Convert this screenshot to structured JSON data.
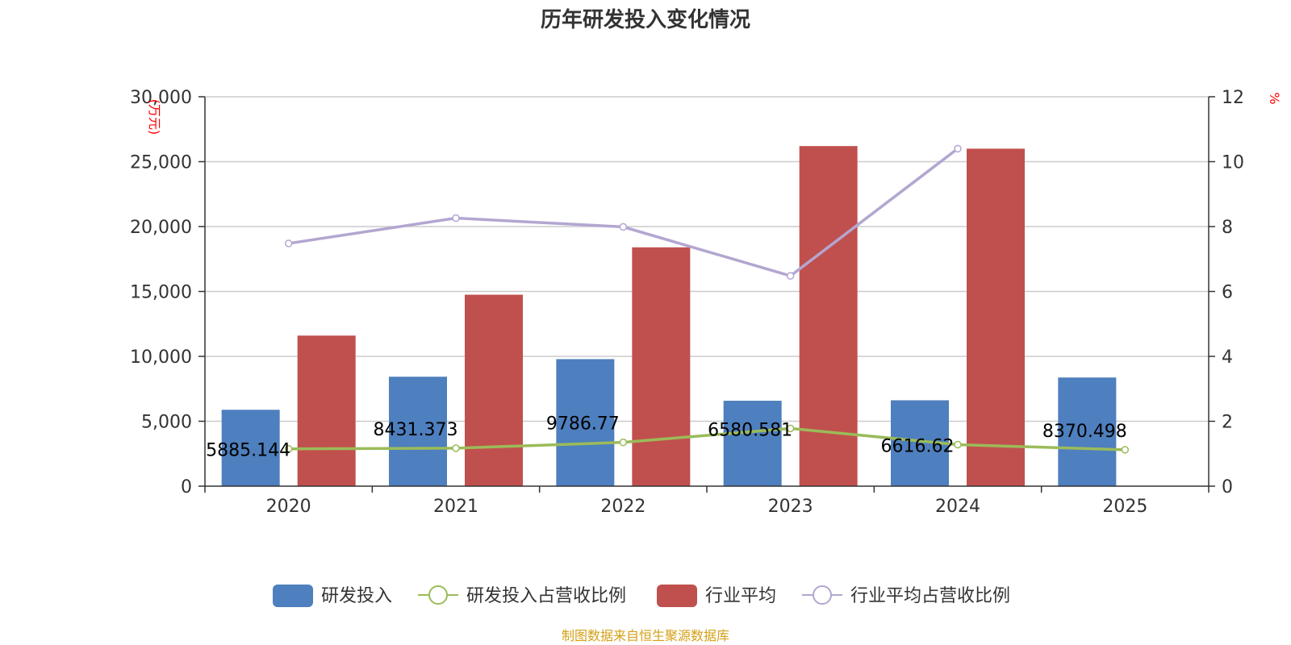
{
  "chart_data": {
    "type": "bar",
    "title": "历年研发投入变化情况",
    "categories": [
      "2020",
      "2021",
      "2022",
      "2023",
      "2024",
      "2025"
    ],
    "y_left": {
      "unit": "万元",
      "ylim": [
        0,
        30000
      ],
      "ticks": [
        0,
        5000,
        10000,
        15000,
        20000,
        25000,
        30000
      ],
      "tick_labels": [
        "0",
        "5,000",
        "10,000",
        "15,000",
        "20,000",
        "25,000",
        "30,000"
      ]
    },
    "y_right": {
      "unit": "%",
      "ylim": [
        0,
        12
      ],
      "ticks": [
        0,
        2,
        4,
        6,
        8,
        10,
        12
      ],
      "tick_labels": [
        "0",
        "2",
        "4",
        "6",
        "8",
        "10",
        "12"
      ]
    },
    "grid": true,
    "legend_position": "bottom",
    "series": [
      {
        "name": "研发投入",
        "type": "bar",
        "axis": "left",
        "color": "#4e7fbe",
        "values": [
          5885.144,
          8431.373,
          9786.77,
          6580.581,
          6616.62,
          8370.498
        ],
        "labels": [
          "5885.144",
          "8431.373",
          "9786.77",
          "6580.581",
          "6616.62",
          "8370.498"
        ]
      },
      {
        "name": "研发投入占营收比例",
        "type": "line",
        "axis": "right",
        "color": "#9bbb59",
        "values": [
          1.15,
          1.17,
          1.35,
          1.78,
          1.28,
          1.12
        ]
      },
      {
        "name": "行业平均",
        "type": "bar",
        "axis": "left",
        "color": "#c0504d",
        "values": [
          11600,
          14750,
          18400,
          26200,
          26000,
          null
        ]
      },
      {
        "name": "行业平均占营收比例",
        "type": "line",
        "axis": "right",
        "color": "#b3a6d0",
        "values": [
          7.48,
          8.26,
          7.99,
          6.48,
          10.4,
          null
        ]
      }
    ]
  },
  "source_note": "制图数据来自恒生聚源数据库",
  "colors": {
    "axis": "#333333",
    "grid": "#cccccc",
    "unit": "#ff0000",
    "source": "#d4a017"
  }
}
